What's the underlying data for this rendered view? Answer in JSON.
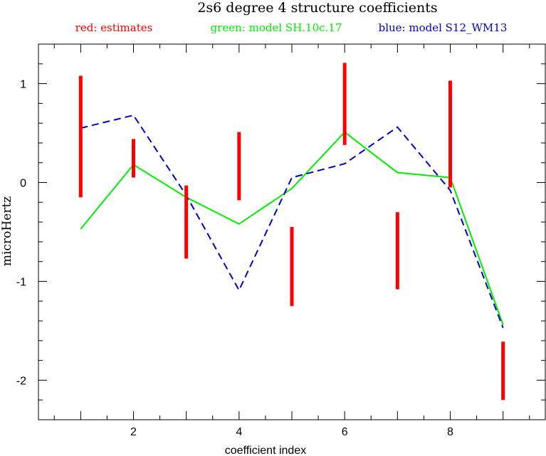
{
  "chart_data": {
    "type": "line",
    "title": "2s6 degree 4 structure coefficients",
    "xlabel": "coefficient index",
    "ylabel": "microHertz",
    "xlim": [
      0.2,
      9.8
    ],
    "ylim": [
      -2.4,
      1.4
    ],
    "xticks": [
      2,
      4,
      6,
      8
    ],
    "yticks": [
      1,
      0,
      -1,
      -2
    ],
    "xtick_labels": [
      "2",
      "4",
      "6",
      "8"
    ],
    "ytick_labels": [
      "1",
      "0",
      "-1",
      "-2"
    ],
    "x_minor_step": 0.5,
    "y_minor_step": 0.2,
    "legend": [
      {
        "text": "red: estimates",
        "color": "#ff0000"
      },
      {
        "text": "green: model SH.10c.17",
        "color": "#00ee00"
      },
      {
        "text": "blue: model S12_WM13",
        "color": "#0000cc"
      }
    ],
    "estimates": {
      "color": "#ff0000",
      "x": [
        1,
        2,
        3,
        4,
        5,
        6,
        7,
        8,
        9
      ],
      "low": [
        -0.15,
        0.05,
        -0.77,
        -0.18,
        -1.25,
        0.38,
        -1.08,
        -0.05,
        -2.2
      ],
      "high": [
        1.08,
        0.44,
        -0.03,
        0.51,
        -0.45,
        1.21,
        -0.3,
        1.03,
        -1.61
      ]
    },
    "series": [
      {
        "name": "model SH.10c.17",
        "color": "#00ee00",
        "dash": "solid",
        "x": [
          1,
          2,
          3,
          4,
          5,
          6,
          7,
          8,
          9
        ],
        "y": [
          -0.47,
          0.18,
          -0.15,
          -0.42,
          -0.06,
          0.51,
          0.1,
          0.05,
          -1.44
        ]
      },
      {
        "name": "model S12_WM13",
        "color": "#0000cc",
        "dash": "dashed",
        "x": [
          1,
          2,
          3,
          4,
          5,
          6,
          7,
          8,
          9
        ],
        "y": [
          0.55,
          0.68,
          -0.13,
          -1.09,
          0.05,
          0.19,
          0.56,
          -0.08,
          -1.47
        ]
      }
    ]
  }
}
